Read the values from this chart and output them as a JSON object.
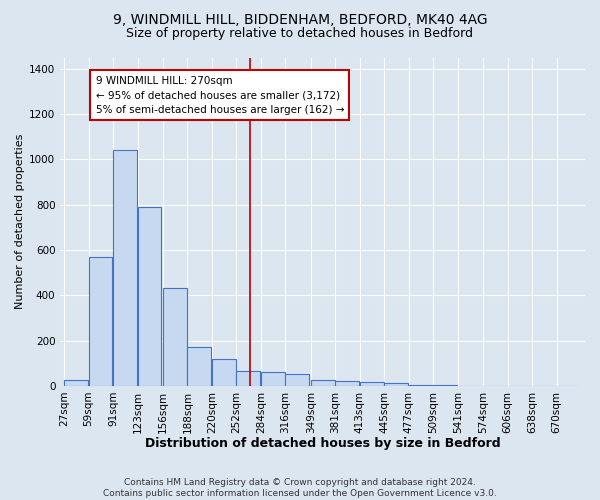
{
  "title1": "9, WINDMILL HILL, BIDDENHAM, BEDFORD, MK40 4AG",
  "title2": "Size of property relative to detached houses in Bedford",
  "xlabel": "Distribution of detached houses by size in Bedford",
  "ylabel": "Number of detached properties",
  "bar_labels": [
    "27sqm",
    "59sqm",
    "91sqm",
    "123sqm",
    "156sqm",
    "188sqm",
    "220sqm",
    "252sqm",
    "284sqm",
    "316sqm",
    "349sqm",
    "381sqm",
    "413sqm",
    "445sqm",
    "477sqm",
    "509sqm",
    "541sqm",
    "574sqm",
    "606sqm",
    "638sqm",
    "670sqm"
  ],
  "bar_values": [
    25,
    570,
    1040,
    790,
    430,
    170,
    120,
    65,
    62,
    52,
    28,
    20,
    18,
    14,
    5,
    2,
    1,
    1,
    0,
    0,
    0
  ],
  "bar_color": "#c6d9f1",
  "bar_edge_color": "#4472c4",
  "bg_color": "#dce6f1",
  "grid_color": "#ffffff",
  "annotation_text": "9 WINDMILL HILL: 270sqm\n← 95% of detached houses are smaller (3,172)\n5% of semi-detached houses are larger (162) →",
  "annotation_box_color": "#ffffff",
  "annotation_border_color": "#c00000",
  "vline_x": 270,
  "vline_color": "#c00000",
  "ylim": [
    0,
    1450
  ],
  "yticks": [
    0,
    200,
    400,
    600,
    800,
    1000,
    1200,
    1400
  ],
  "footer": "Contains HM Land Registry data © Crown copyright and database right 2024.\nContains public sector information licensed under the Open Government Licence v3.0.",
  "title1_fontsize": 10,
  "title2_fontsize": 9,
  "xlabel_fontsize": 9,
  "ylabel_fontsize": 8,
  "tick_fontsize": 7.5,
  "annotation_fontsize": 7.5,
  "footer_fontsize": 6.5,
  "bin_width": 32
}
